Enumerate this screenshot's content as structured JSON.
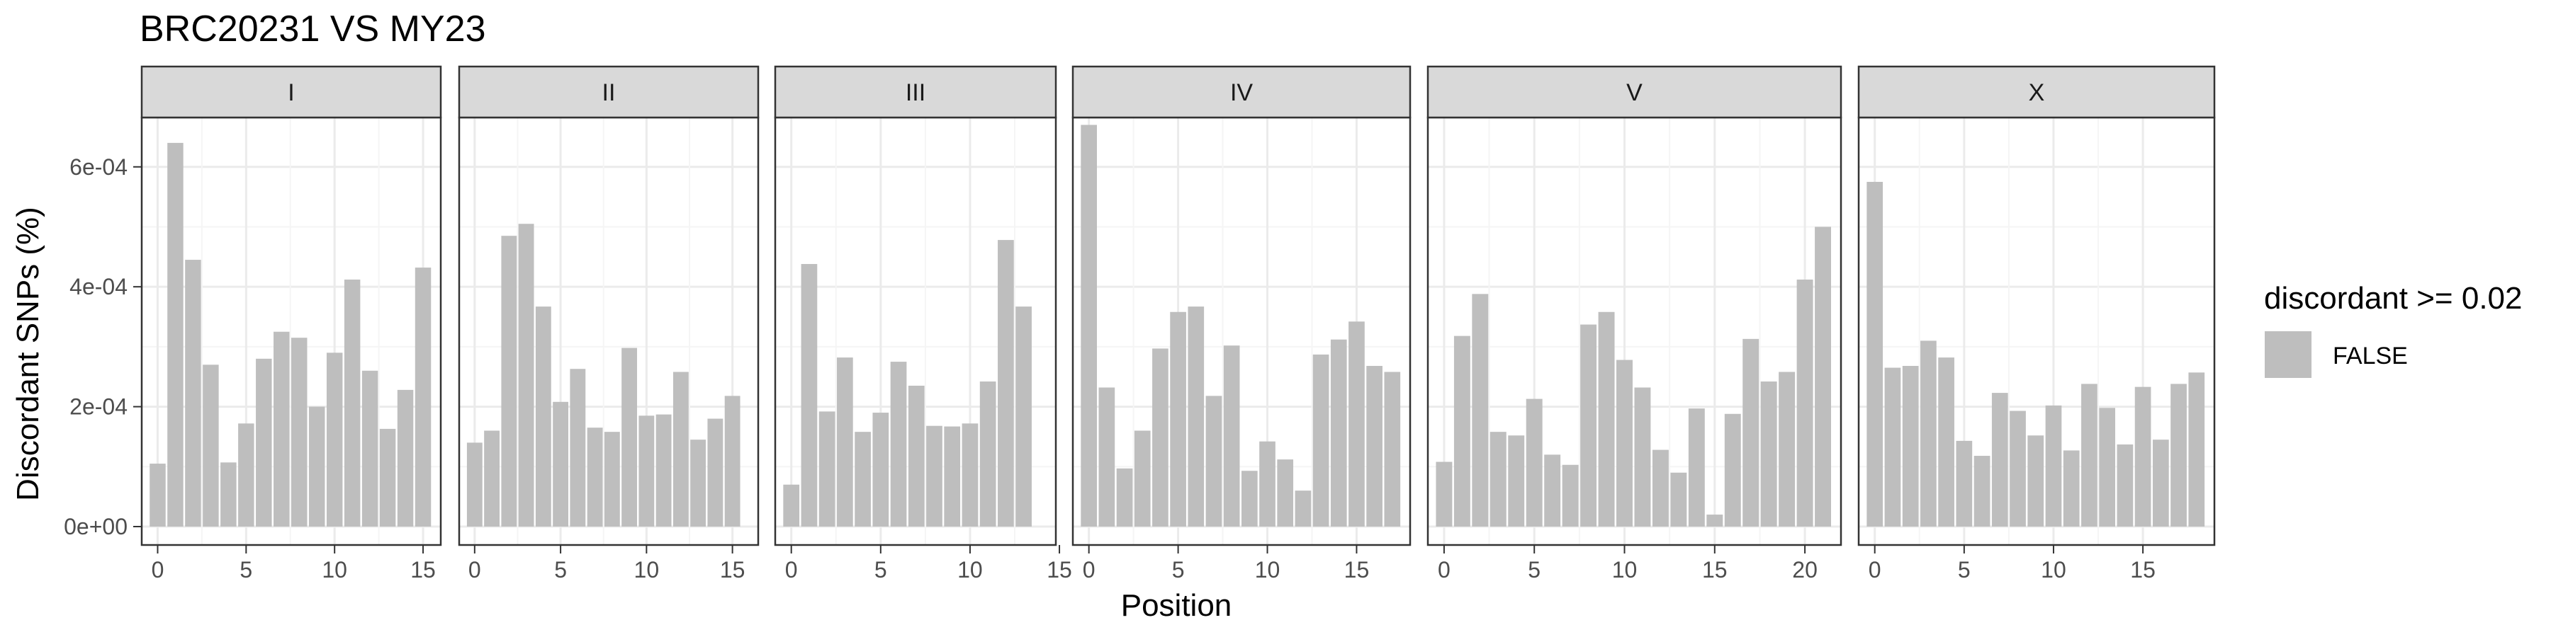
{
  "chart_data": {
    "type": "bar",
    "title": "BRC20231 VS MY23",
    "xlabel": "Position",
    "ylabel": "Discordant SNPs (%)",
    "ylim": [
      0,
      0.00068
    ],
    "y_ticks": [
      "0e+00",
      "2e-04",
      "4e-04",
      "6e-04"
    ],
    "y_tick_values": [
      0,
      0.0002,
      0.0004,
      0.0006
    ],
    "grid": true,
    "legend": {
      "title": "discordant >= 0.02",
      "entries": [
        {
          "label": "FALSE",
          "color": "#bebebe"
        }
      ],
      "placement": "right"
    },
    "facets": [
      {
        "label": "I",
        "xlim": [
          -0.9,
          16.0
        ],
        "x_ticks": [
          0,
          5,
          10,
          15
        ],
        "x_tick_labels": [
          "0",
          "5",
          "10",
          "15"
        ],
        "x": [
          0,
          1,
          2,
          3,
          4,
          5,
          6,
          7,
          8,
          9,
          10,
          11,
          12,
          13,
          14,
          15
        ],
        "values": [
          0.000105,
          0.00064,
          0.000445,
          0.00027,
          0.000107,
          0.000172,
          0.00028,
          0.000325,
          0.000315,
          0.0002,
          0.00029,
          0.000412,
          0.00026,
          0.000163,
          0.000228,
          0.000432
        ]
      },
      {
        "label": "II",
        "xlim": [
          -0.9,
          16.5
        ],
        "x_ticks": [
          0,
          5,
          10,
          15
        ],
        "x_tick_labels": [
          "0",
          "5",
          "10",
          "15"
        ],
        "x": [
          0,
          1,
          2,
          3,
          4,
          5,
          6,
          7,
          8,
          9,
          10,
          11,
          12,
          13,
          14,
          15
        ],
        "values": [
          0.00014,
          0.00016,
          0.000485,
          0.000505,
          0.000367,
          0.000208,
          0.000263,
          0.000165,
          0.000158,
          0.000298,
          0.000185,
          0.000187,
          0.000258,
          0.000145,
          0.00018,
          0.000218
        ]
      },
      {
        "label": "III",
        "xlim": [
          -0.9,
          14.8
        ],
        "x_ticks": [
          0,
          5,
          10,
          15
        ],
        "x_tick_labels": [
          "0",
          "5",
          "10",
          "15"
        ],
        "x": [
          0,
          1,
          2,
          3,
          4,
          5,
          6,
          7,
          8,
          9,
          10,
          11,
          12,
          13
        ],
        "values": [
          7e-05,
          0.000438,
          0.000192,
          0.000282,
          0.000158,
          0.00019,
          0.000275,
          0.000235,
          0.000168,
          0.000167,
          0.000172,
          0.000242,
          0.000478,
          0.000367
        ]
      },
      {
        "label": "IV",
        "xlim": [
          -0.9,
          18.0
        ],
        "x_ticks": [
          0,
          5,
          10,
          15
        ],
        "x_tick_labels": [
          "0",
          "5",
          "10",
          "15"
        ],
        "x": [
          0,
          1,
          2,
          3,
          4,
          5,
          6,
          7,
          8,
          9,
          10,
          11,
          12,
          13,
          14,
          15,
          16,
          17
        ],
        "values": [
          0.00067,
          0.000232,
          9.7e-05,
          0.00016,
          0.000297,
          0.000358,
          0.000367,
          0.000218,
          0.000302,
          9.3e-05,
          0.000142,
          0.000112,
          6e-05,
          0.000287,
          0.000312,
          0.000342,
          0.000268,
          0.000258
        ]
      },
      {
        "label": "V",
        "xlim": [
          -0.9,
          22.0
        ],
        "x_ticks": [
          0,
          5,
          10,
          15,
          20
        ],
        "x_tick_labels": [
          "0",
          "5",
          "10",
          "15",
          "20"
        ],
        "x": [
          0,
          1,
          2,
          3,
          4,
          5,
          6,
          7,
          8,
          9,
          10,
          11,
          12,
          13,
          14,
          15,
          16,
          17,
          18,
          19,
          20,
          21
        ],
        "values": [
          0.000108,
          0.000318,
          0.000388,
          0.000158,
          0.000152,
          0.000213,
          0.00012,
          0.000103,
          0.000337,
          0.000358,
          0.000278,
          0.000232,
          0.000128,
          9e-05,
          0.000197,
          2e-05,
          0.000188,
          0.000313,
          0.000242,
          0.000258,
          0.000412,
          0.0005
        ]
      },
      {
        "label": "X",
        "xlim": [
          -0.9,
          19.0
        ],
        "x_ticks": [
          0,
          5,
          10,
          15
        ],
        "x_tick_labels": [
          "0",
          "5",
          "10",
          "15"
        ],
        "x": [
          0,
          1,
          2,
          3,
          4,
          5,
          6,
          7,
          8,
          9,
          10,
          11,
          12,
          13,
          14,
          15,
          16,
          17,
          18
        ],
        "values": [
          0.000575,
          0.000265,
          0.000268,
          0.00031,
          0.000282,
          0.000143,
          0.000118,
          0.000223,
          0.000193,
          0.000152,
          0.000202,
          0.000127,
          0.000238,
          0.000198,
          0.000137,
          0.000233,
          0.000145,
          0.000238,
          0.000257
        ]
      }
    ]
  },
  "colors": {
    "bar": "#bebebe",
    "strip_fill": "#d9d9d9",
    "panel_border": "#333333",
    "grid_major": "#ebebeb",
    "grid_minor": "#f5f5f5"
  }
}
